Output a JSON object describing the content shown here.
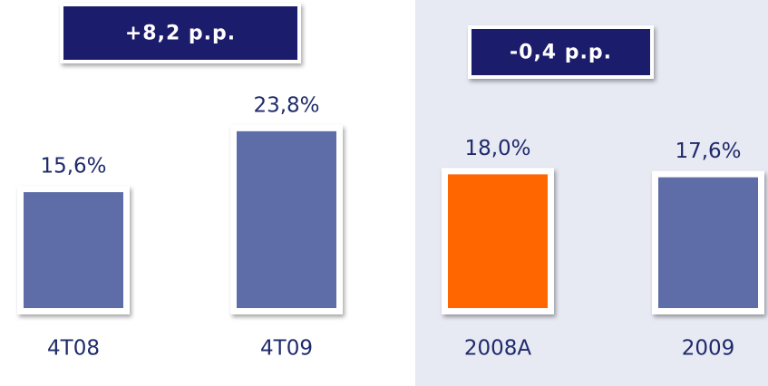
{
  "chart_data": [
    {
      "type": "bar",
      "annotation": "+8,2 p.p.",
      "categories": [
        "4T08",
        "4T09"
      ],
      "values": [
        15.6,
        23.8
      ],
      "value_labels": [
        "15,6%",
        "23,8%"
      ],
      "colors": [
        "#5e6ca8",
        "#5e6ca8"
      ]
    },
    {
      "type": "bar",
      "annotation": "-0,4 p.p.",
      "categories": [
        "2008A",
        "2009"
      ],
      "values": [
        18.0,
        17.6
      ],
      "value_labels": [
        "18,0%",
        "17,6%"
      ],
      "colors": [
        "#ff6600",
        "#5e6ca8"
      ]
    }
  ]
}
